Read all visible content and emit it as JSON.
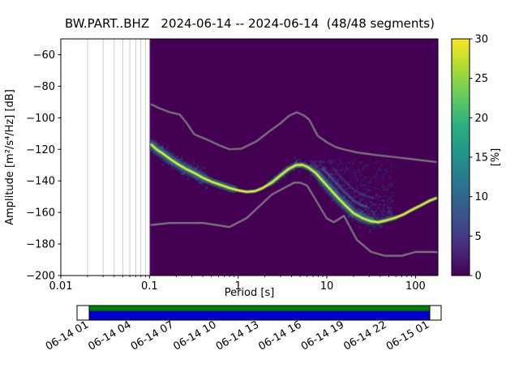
{
  "title": "BW.PART..BHZ   2024-06-14 -- 2024-06-14  (48/48 segments)",
  "axes": {
    "xlabel": "Period [s]",
    "ylabel": "Amplitude [m²/s⁴/Hz] [dB]",
    "x_ticks": [
      {
        "v": 0.01,
        "label": "0.01"
      },
      {
        "v": 0.1,
        "label": "0.1"
      },
      {
        "v": 1,
        "label": "1"
      },
      {
        "v": 10,
        "label": "10"
      },
      {
        "v": 100,
        "label": "100"
      }
    ],
    "y_ticks": [
      {
        "v": -60,
        "label": "−60"
      },
      {
        "v": -80,
        "label": "−80"
      },
      {
        "v": -100,
        "label": "−100"
      },
      {
        "v": -120,
        "label": "−120"
      },
      {
        "v": -140,
        "label": "−140"
      },
      {
        "v": -160,
        "label": "−160"
      },
      {
        "v": -180,
        "label": "−180"
      },
      {
        "v": -200,
        "label": "−200"
      }
    ]
  },
  "colorbar": {
    "label": "[%]",
    "min": 0,
    "max": 30,
    "tick_values": [
      0,
      5,
      10,
      15,
      20,
      25,
      30
    ],
    "tick_labels": [
      "0",
      "5",
      "10",
      "15",
      "20",
      "25",
      "30"
    ],
    "colors": [
      "#440154",
      "#472d7b",
      "#3b528b",
      "#2c728e",
      "#21918c",
      "#27ad81",
      "#5ec962",
      "#aadc32",
      "#fde725"
    ]
  },
  "timeline": {
    "labels": [
      "06-14 01",
      "06-14 04",
      "06-14 07",
      "06-14 10",
      "06-14 13",
      "06-14 16",
      "06-14 19",
      "06-14 22",
      "06-15 01"
    ],
    "colors": {
      "top_stripe": "#008000",
      "fill": "#0000cd",
      "caps": "#ffffff"
    }
  },
  "chart_data": {
    "type": "heatmap",
    "subtype": "ppsd-probability-histogram",
    "title": "BW.PART..BHZ   2024-06-14 -- 2024-06-14  (48/48 segments)",
    "xlabel": "Period [s]",
    "ylabel": "Amplitude [m²/s⁴/Hz] [dB]",
    "xscale": "log",
    "xlim": [
      0.01,
      179
    ],
    "ylim": [
      -200,
      -50
    ],
    "data_period_start": 0.1,
    "background_color": "#440154",
    "colorbar_range_percent": [
      0,
      30
    ],
    "psd_mode_curve": {
      "name": "PSD highest-probability curve",
      "color": "#fde725",
      "points": [
        [
          0.105,
          -117
        ],
        [
          0.12,
          -120
        ],
        [
          0.14,
          -122.5
        ],
        [
          0.17,
          -126
        ],
        [
          0.21,
          -129.5
        ],
        [
          0.26,
          -132.5
        ],
        [
          0.32,
          -135
        ],
        [
          0.4,
          -138
        ],
        [
          0.5,
          -140.5
        ],
        [
          0.63,
          -142.5
        ],
        [
          0.8,
          -144.5
        ],
        [
          1.0,
          -146
        ],
        [
          1.25,
          -147
        ],
        [
          1.55,
          -146.5
        ],
        [
          1.9,
          -144.5
        ],
        [
          2.4,
          -141
        ],
        [
          3.0,
          -136.5
        ],
        [
          3.7,
          -132.5
        ],
        [
          4.5,
          -130
        ],
        [
          5.3,
          -129.8
        ],
        [
          6.2,
          -131.5
        ],
        [
          7.5,
          -135
        ],
        [
          9,
          -140
        ],
        [
          11,
          -145.5
        ],
        [
          13.5,
          -151
        ],
        [
          16.5,
          -156
        ],
        [
          20,
          -160.5
        ],
        [
          25,
          -163.5
        ],
        [
          31,
          -165.5
        ],
        [
          38,
          -166.2
        ],
        [
          47,
          -165
        ],
        [
          58,
          -163.5
        ],
        [
          72,
          -161.5
        ],
        [
          90,
          -158.5
        ],
        [
          115,
          -155.5
        ],
        [
          145,
          -152.5
        ],
        [
          170,
          -151
        ]
      ]
    },
    "noise_models": [
      {
        "name": "NHNM (Peterson 1993)",
        "color": "#7c7c7c",
        "points": [
          [
            0.105,
            -91.5
          ],
          [
            0.13,
            -94
          ],
          [
            0.17,
            -96.5
          ],
          [
            0.22,
            -98
          ],
          [
            0.26,
            -103
          ],
          [
            0.32,
            -110.5
          ],
          [
            0.45,
            -114
          ],
          [
            0.62,
            -117.5
          ],
          [
            0.8,
            -120
          ],
          [
            1.1,
            -119.5
          ],
          [
            1.6,
            -115
          ],
          [
            2.2,
            -109
          ],
          [
            3.0,
            -103.5
          ],
          [
            3.8,
            -98.5
          ],
          [
            4.6,
            -96.5
          ],
          [
            5.5,
            -98.5
          ],
          [
            6.3,
            -101
          ],
          [
            7.9,
            -111.5
          ],
          [
            10,
            -115.5
          ],
          [
            12.5,
            -118.5
          ],
          [
            15.4,
            -120
          ],
          [
            22,
            -122
          ],
          [
            35,
            -123.5
          ],
          [
            60,
            -125
          ],
          [
            100,
            -126.5
          ],
          [
            170,
            -128
          ]
        ]
      },
      {
        "name": "NLNM (Peterson 1993)",
        "color": "#7c7c7c",
        "points": [
          [
            0.105,
            -168
          ],
          [
            0.17,
            -166.7
          ],
          [
            0.4,
            -166.7
          ],
          [
            0.8,
            -169.2
          ],
          [
            1.24,
            -163.7
          ],
          [
            2.4,
            -148.6
          ],
          [
            4.3,
            -141.1
          ],
          [
            5.0,
            -141.1
          ],
          [
            6.0,
            -143.0
          ],
          [
            10.0,
            -163.8
          ],
          [
            12.0,
            -166.2
          ],
          [
            15.6,
            -162.1
          ],
          [
            21.9,
            -177.5
          ],
          [
            31.6,
            -185.0
          ],
          [
            45,
            -187.5
          ],
          [
            70,
            -187.5
          ],
          [
            101,
            -185.0
          ],
          [
            154,
            -185.0
          ],
          [
            175,
            -185.2
          ]
        ]
      }
    ],
    "base_halo": {
      "teal": {
        "width": 4.5,
        "color": "#26a186",
        "alpha": 0.5
      },
      "green": {
        "width": 3.1,
        "color": "#4ac16d",
        "alpha": 0.95
      },
      "line": {
        "width": 2.1,
        "color": "#fde725",
        "alpha": 1
      }
    },
    "halo_segments": [
      {
        "p0": 0.105,
        "p1": 0.9,
        "width": 9,
        "color": "#26a186",
        "alpha": 0.5
      },
      {
        "p0": 0.105,
        "p1": 0.4,
        "width": 14,
        "color": "#33638d",
        "alpha": 0.4
      },
      {
        "p0": 2.3,
        "p1": 6.8,
        "width": 7,
        "color": "#26a186",
        "alpha": 0.45
      },
      {
        "p0": 7.5,
        "p1": 32,
        "width": 9,
        "color": "#26a186",
        "alpha": 0.5
      },
      {
        "p0": 9,
        "p1": 27,
        "width": 14,
        "color": "#33638d",
        "alpha": 0.33
      },
      {
        "p0": 32,
        "p1": 60,
        "width": 6,
        "color": "#26a186",
        "alpha": 0.4
      }
    ],
    "strands": [
      {
        "p0": 9,
        "p1": 28,
        "db_offset": 8,
        "width": 3,
        "color": "#3f7fb4",
        "alpha": 0.5
      },
      {
        "p0": 12,
        "p1": 33,
        "db_offset": 15,
        "width": 2.5,
        "color": "#365c8d",
        "alpha": 0.45
      }
    ],
    "scatter_regions": [
      {
        "pmin": 6.5,
        "pmax": 55,
        "mode": "above",
        "db_limit": -127,
        "count": 900,
        "color": "#3b528b",
        "alpha_min": 0.1,
        "alpha_max": 0.45
      },
      {
        "pmin": 0.105,
        "pmax": 0.45,
        "mode": "around",
        "spread": 8,
        "count": 200,
        "color": "#2c728e",
        "alpha_min": 0.15,
        "alpha_max": 0.55
      },
      {
        "pmin": 2.6,
        "pmax": 6.8,
        "mode": "around",
        "spread": 5,
        "count": 120,
        "color": "#2c728e",
        "alpha_min": 0.12,
        "alpha_max": 0.5
      },
      {
        "pmin": 8,
        "pmax": 42,
        "mode": "around",
        "spread": 7,
        "count": 240,
        "color": "#2c728e",
        "alpha_min": 0.12,
        "alpha_max": 0.5
      }
    ]
  }
}
